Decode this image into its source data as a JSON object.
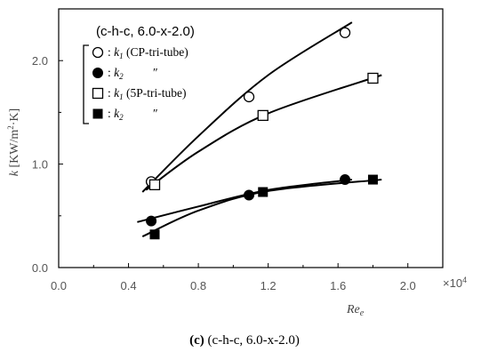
{
  "chart_data": {
    "type": "scatter",
    "inset_title": "(c-h-c, 6.0-x-2.0)",
    "xlabel": "Re_e",
    "ylabel": "k [KW/m²·K]",
    "x_multiplier": "×10⁴",
    "xlim": [
      0.0,
      2.2
    ],
    "ylim": [
      0.0,
      2.5
    ],
    "xticks": [
      "0.0",
      "0.4",
      "0.8",
      "1.2",
      "1.6",
      "2.0"
    ],
    "yticks": [
      "0.0",
      "1.0",
      "2.0"
    ],
    "xtick_values": [
      0.0,
      0.4,
      0.8,
      1.2,
      1.6,
      2.0
    ],
    "ytick_values": [
      0.0,
      1.0,
      2.0
    ],
    "grid": false,
    "legend_position": "top-left",
    "series": [
      {
        "name": "k1 (CP-tri-tube)",
        "marker": "open-circle",
        "x": [
          0.53,
          1.09,
          1.64
        ],
        "y": [
          0.83,
          1.65,
          2.27
        ]
      },
      {
        "name": "k2 (CP-tri-tube)",
        "marker": "filled-circle",
        "x": [
          0.53,
          1.09,
          1.64
        ],
        "y": [
          0.45,
          0.7,
          0.85
        ]
      },
      {
        "name": "k1 (5P-tri-tube)",
        "marker": "open-square",
        "x": [
          0.55,
          1.17,
          1.8
        ],
        "y": [
          0.8,
          1.47,
          1.83
        ]
      },
      {
        "name": "k2 (5P-tri-tube)",
        "marker": "filled-square",
        "x": [
          0.55,
          1.17,
          1.8
        ],
        "y": [
          0.32,
          0.73,
          0.85
        ]
      }
    ],
    "fit_curves": [
      {
        "series": "k1 (CP-tri-tube)",
        "x": [
          0.48,
          0.8,
          1.2,
          1.68
        ],
        "y": [
          0.73,
          1.27,
          1.86,
          2.37
        ]
      },
      {
        "series": "k2 (CP-tri-tube)",
        "x": [
          0.45,
          0.8,
          1.2,
          1.68
        ],
        "y": [
          0.44,
          0.59,
          0.75,
          0.85
        ]
      },
      {
        "series": "k1 (5P-tri-tube)",
        "x": [
          0.5,
          0.8,
          1.2,
          1.85
        ],
        "y": [
          0.75,
          1.12,
          1.49,
          1.86
        ]
      },
      {
        "series": "k2 (5P-tri-tube)",
        "x": [
          0.48,
          0.8,
          1.2,
          1.85
        ],
        "y": [
          0.3,
          0.55,
          0.74,
          0.85
        ]
      }
    ]
  },
  "legend": [
    {
      "symbol": "○",
      "prefix": ": ",
      "k": "k",
      "sub": "1",
      "text": "(CP-tri-tube)"
    },
    {
      "symbol": "●",
      "prefix": ": ",
      "k": "k",
      "sub": "2",
      "text": "″"
    },
    {
      "symbol": "□",
      "prefix": ": ",
      "k": "k",
      "sub": "1",
      "text": "(5P-tri-tube)"
    },
    {
      "symbol": "■",
      "prefix": ": ",
      "k": "k",
      "sub": "2",
      "text": "″"
    }
  ],
  "caption": {
    "label": "(c)",
    "text": "(c-h-c, 6.0-x-2.0)"
  }
}
